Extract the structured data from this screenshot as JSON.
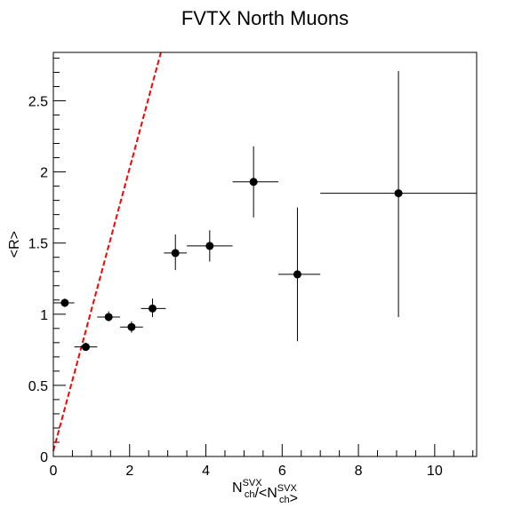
{
  "chart_data": {
    "type": "scatter",
    "title": "FVTX North Muons",
    "xlabel": {
      "parts": [
        {
          "text": "N",
          "sup": "SVX",
          "sub": "ch"
        },
        {
          "text": "/<N",
          "sup": "SVX",
          "sub": "ch"
        },
        {
          "text": ">"
        }
      ]
    },
    "ylabel": "<R>",
    "xlim": [
      0,
      11.1
    ],
    "ylim": [
      0,
      2.84
    ],
    "x_ticks": [
      0,
      2,
      4,
      6,
      8,
      10
    ],
    "y_ticks": [
      0,
      0.5,
      1,
      1.5,
      2,
      2.5
    ],
    "x_tick_labels": [
      "0",
      "2",
      "4",
      "6",
      "8",
      "10"
    ],
    "y_tick_labels": [
      "0",
      "0.5",
      "1",
      "1.5",
      "2",
      "2.5"
    ],
    "grid": false,
    "series": [
      {
        "marker": "circle",
        "color": "#000000",
        "points": [
          {
            "x": 0.3,
            "y": 1.08,
            "xlo": 0.0,
            "xhi": 0.55,
            "ylo": 1.05,
            "yhi": 1.11
          },
          {
            "x": 0.85,
            "y": 0.77,
            "xlo": 0.55,
            "xhi": 1.15,
            "ylo": 0.75,
            "yhi": 0.8
          },
          {
            "x": 1.45,
            "y": 0.98,
            "xlo": 1.15,
            "xhi": 1.75,
            "ylo": 0.95,
            "yhi": 1.02
          },
          {
            "x": 2.05,
            "y": 0.91,
            "xlo": 1.75,
            "xhi": 2.35,
            "ylo": 0.87,
            "yhi": 0.95
          },
          {
            "x": 2.6,
            "y": 1.04,
            "xlo": 2.3,
            "xhi": 2.95,
            "ylo": 0.98,
            "yhi": 1.11
          },
          {
            "x": 3.2,
            "y": 1.43,
            "xlo": 2.9,
            "xhi": 3.5,
            "ylo": 1.31,
            "yhi": 1.56
          },
          {
            "x": 4.1,
            "y": 1.48,
            "xlo": 3.5,
            "xhi": 4.7,
            "ylo": 1.37,
            "yhi": 1.59
          },
          {
            "x": 5.25,
            "y": 1.93,
            "xlo": 4.7,
            "xhi": 5.9,
            "ylo": 1.68,
            "yhi": 2.18
          },
          {
            "x": 6.4,
            "y": 1.28,
            "xlo": 5.9,
            "xhi": 7.0,
            "ylo": 0.81,
            "yhi": 1.75
          },
          {
            "x": 9.05,
            "y": 1.85,
            "xlo": 7.0,
            "xhi": 11.1,
            "ylo": 0.98,
            "yhi": 2.71
          }
        ]
      }
    ],
    "reference_line": {
      "style": "dashed",
      "color": "#ff0000",
      "x": [
        0,
        2.82
      ],
      "y": [
        0.04,
        2.84
      ]
    }
  }
}
